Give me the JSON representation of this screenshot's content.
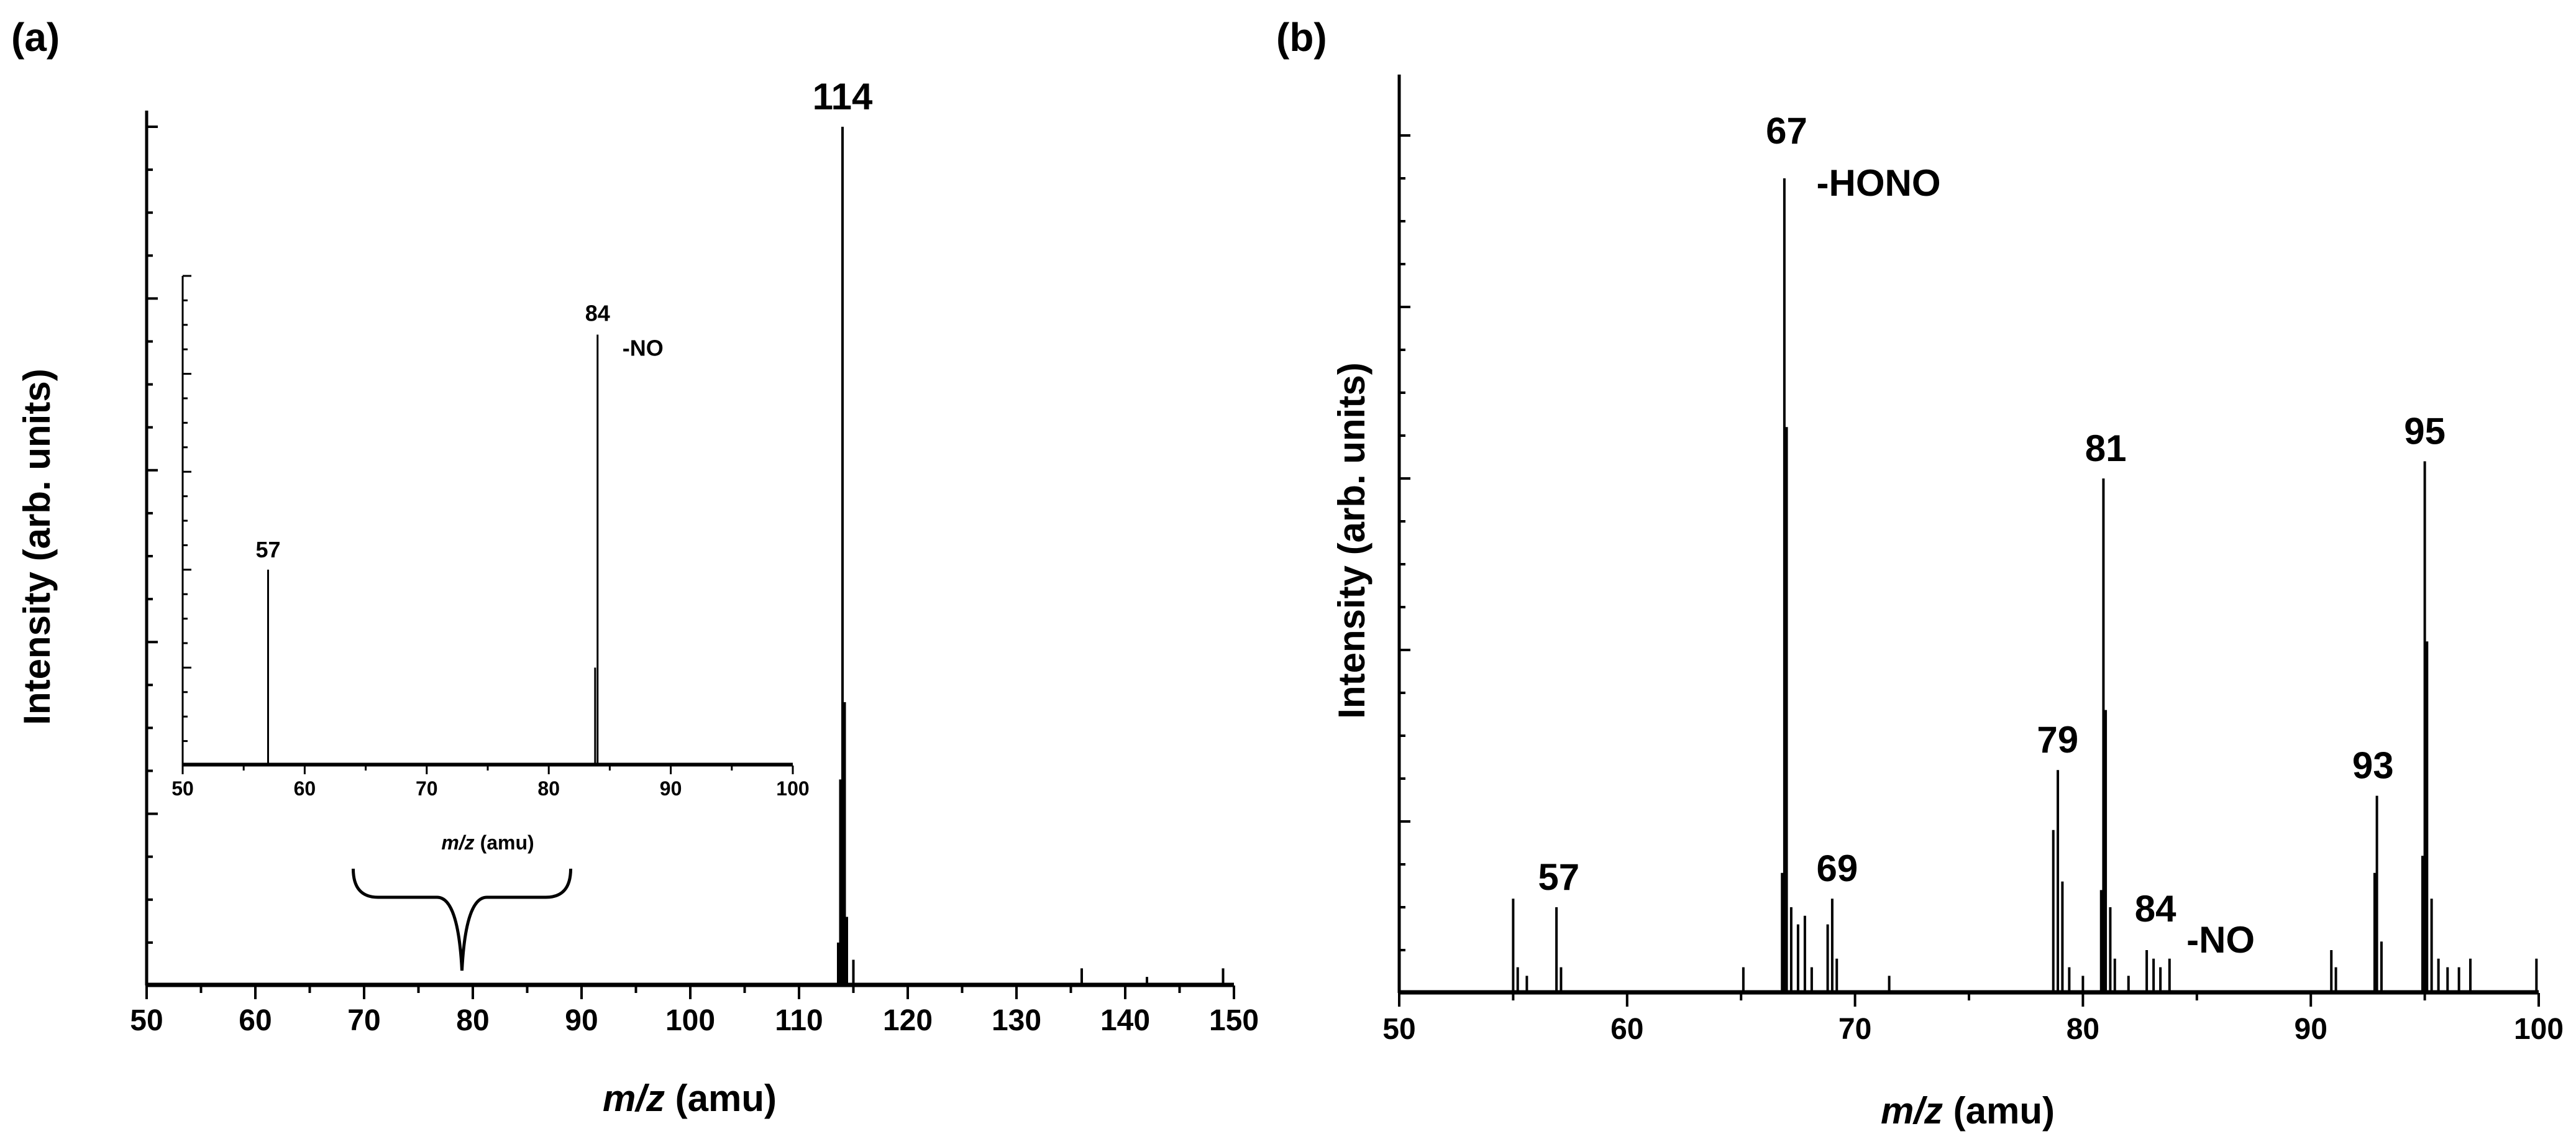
{
  "chart_data": [
    {
      "panel": "(a)",
      "type": "bar",
      "xlabel_italic": "m/z",
      "xlabel_rest": " (amu)",
      "ylabel": "Intensity (arb. units)",
      "xlim": [
        50,
        150
      ],
      "ylim": [
        0,
        100
      ],
      "x_ticks": [
        "50",
        "60",
        "70",
        "80",
        "90",
        "100",
        "110",
        "120",
        "130",
        "140",
        "150"
      ],
      "peaks": [
        {
          "x": 113.6,
          "y": 5
        },
        {
          "x": 113.8,
          "y": 24
        },
        {
          "x": 114.0,
          "y": 100
        },
        {
          "x": 114.2,
          "y": 33
        },
        {
          "x": 114.4,
          "y": 8
        },
        {
          "x": 115.0,
          "y": 3
        },
        {
          "x": 136.0,
          "y": 2
        },
        {
          "x": 142.0,
          "y": 1
        },
        {
          "x": 149.0,
          "y": 2
        }
      ],
      "annotations": [
        {
          "label": "114",
          "x": 114,
          "y": 100
        }
      ],
      "bracket": {
        "from": 69,
        "to": 89
      },
      "inset": {
        "xlabel_italic": "m/z",
        "xlabel_rest": " (amu)",
        "xlim": [
          50,
          100
        ],
        "ylim": [
          0,
          100
        ],
        "x_ticks": [
          "50",
          "60",
          "70",
          "80",
          "90",
          "100"
        ],
        "peaks": [
          {
            "x": 57.0,
            "y": 40
          },
          {
            "x": 83.8,
            "y": 20
          },
          {
            "x": 84.0,
            "y": 88
          }
        ],
        "annotations": [
          {
            "label": "57",
            "x": 57,
            "y": 40
          },
          {
            "label": "84",
            "x": 84,
            "y": 88
          },
          {
            "label": "-NO",
            "x": 84,
            "y": 88,
            "role": "loss"
          }
        ]
      }
    },
    {
      "panel": "(b)",
      "type": "bar",
      "xlabel_italic": "m/z",
      "xlabel_rest": " (amu)",
      "ylabel": "Intensity (arb. units)",
      "xlim": [
        50,
        100
      ],
      "ylim": [
        0,
        100
      ],
      "x_ticks": [
        "50",
        "60",
        "70",
        "80",
        "90",
        "100"
      ],
      "peaks": [
        {
          "x": 55.0,
          "y": 11
        },
        {
          "x": 55.2,
          "y": 3
        },
        {
          "x": 55.6,
          "y": 2
        },
        {
          "x": 56.9,
          "y": 10
        },
        {
          "x": 57.1,
          "y": 3
        },
        {
          "x": 65.1,
          "y": 3
        },
        {
          "x": 66.8,
          "y": 14
        },
        {
          "x": 66.9,
          "y": 95
        },
        {
          "x": 67.0,
          "y": 66
        },
        {
          "x": 67.2,
          "y": 10
        },
        {
          "x": 67.5,
          "y": 8
        },
        {
          "x": 67.8,
          "y": 9
        },
        {
          "x": 68.1,
          "y": 3
        },
        {
          "x": 68.8,
          "y": 8
        },
        {
          "x": 69.0,
          "y": 11
        },
        {
          "x": 69.2,
          "y": 4
        },
        {
          "x": 71.5,
          "y": 2
        },
        {
          "x": 78.7,
          "y": 19
        },
        {
          "x": 78.9,
          "y": 26
        },
        {
          "x": 79.1,
          "y": 13
        },
        {
          "x": 79.4,
          "y": 3
        },
        {
          "x": 80.0,
          "y": 2
        },
        {
          "x": 80.8,
          "y": 12
        },
        {
          "x": 80.9,
          "y": 60
        },
        {
          "x": 81.0,
          "y": 33
        },
        {
          "x": 81.2,
          "y": 10
        },
        {
          "x": 81.4,
          "y": 4
        },
        {
          "x": 82.0,
          "y": 2
        },
        {
          "x": 82.8,
          "y": 5
        },
        {
          "x": 83.1,
          "y": 4
        },
        {
          "x": 83.4,
          "y": 3
        },
        {
          "x": 83.8,
          "y": 4
        },
        {
          "x": 90.9,
          "y": 5
        },
        {
          "x": 91.1,
          "y": 3
        },
        {
          "x": 92.8,
          "y": 14
        },
        {
          "x": 92.9,
          "y": 23
        },
        {
          "x": 93.1,
          "y": 6
        },
        {
          "x": 94.9,
          "y": 16
        },
        {
          "x": 95.0,
          "y": 62
        },
        {
          "x": 95.1,
          "y": 41
        },
        {
          "x": 95.3,
          "y": 11
        },
        {
          "x": 95.6,
          "y": 4
        },
        {
          "x": 96.0,
          "y": 3
        },
        {
          "x": 96.5,
          "y": 3
        },
        {
          "x": 97.0,
          "y": 4
        },
        {
          "x": 99.9,
          "y": 4
        }
      ],
      "annotations": [
        {
          "label": "57",
          "x": 57,
          "y": 10
        },
        {
          "label": "67",
          "x": 67,
          "y": 95
        },
        {
          "label": "-HONO",
          "x": 67,
          "y": 95,
          "role": "loss"
        },
        {
          "label": "69",
          "x": 69,
          "y": 11
        },
        {
          "label": "79",
          "x": 79,
          "y": 26
        },
        {
          "label": "81",
          "x": 81,
          "y": 60
        },
        {
          "label": "84",
          "x": 84,
          "y": 4
        },
        {
          "label": "-NO",
          "x": 84,
          "y": 4,
          "role": "loss"
        },
        {
          "label": "93",
          "x": 93,
          "y": 23
        },
        {
          "label": "95",
          "x": 95,
          "y": 62
        }
      ]
    }
  ]
}
